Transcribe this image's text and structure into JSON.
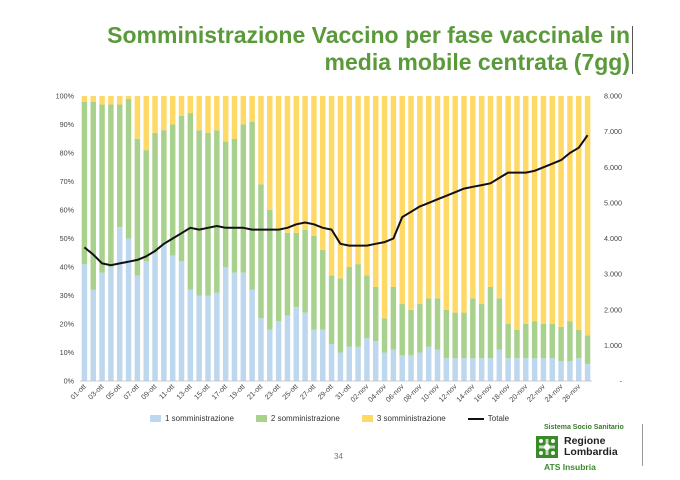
{
  "title": {
    "line1": "Somministrazione Vaccino per fase vaccinale in",
    "line2": "media mobile centrata (7gg)"
  },
  "colors": {
    "title": "#5a9a3a",
    "dose1": "#bdd7ee",
    "dose2": "#a9d18e",
    "dose3": "#ffd966",
    "totale": "#111111"
  },
  "footer": {
    "page_number": "34",
    "logo_system": "Sistema Socio Sanitario",
    "logo_region_1": "Regione",
    "logo_region_2": "Lombardia",
    "logo_ats": "ATS Insubria"
  },
  "chart_data": {
    "type": "bar",
    "stacked": "percent",
    "title": "",
    "xlabel": "",
    "ylabel": "",
    "ylim": [
      0,
      100
    ],
    "y2lim": [
      0,
      8000
    ],
    "y_ticks": [
      "0%",
      "10%",
      "20%",
      "30%",
      "40%",
      "50%",
      "60%",
      "70%",
      "80%",
      "90%",
      "100%"
    ],
    "y2_ticks": [
      "-",
      "1.000",
      "2.000",
      "3.000",
      "4.000",
      "5.000",
      "6.000",
      "7.000",
      "8.000"
    ],
    "grid": false,
    "legend_position": "bottom",
    "x_tick_labels": [
      "01-ott",
      "03-ott",
      "05-ott",
      "07-ott",
      "09-ott",
      "11-ott",
      "13-ott",
      "15-ott",
      "17-ott",
      "19-ott",
      "21-ott",
      "23-ott",
      "25-ott",
      "27-ott",
      "29-ott",
      "31-ott",
      "02-nov",
      "04-nov",
      "06-nov",
      "08-nov",
      "10-nov",
      "12-nov",
      "14-nov",
      "16-nov",
      "18-nov",
      "20-nov",
      "22-nov",
      "24-nov",
      "26-nov"
    ],
    "categories": [
      "01-ott",
      "02-ott",
      "03-ott",
      "04-ott",
      "05-ott",
      "06-ott",
      "07-ott",
      "08-ott",
      "09-ott",
      "10-ott",
      "11-ott",
      "12-ott",
      "13-ott",
      "14-ott",
      "15-ott",
      "16-ott",
      "17-ott",
      "18-ott",
      "19-ott",
      "20-ott",
      "21-ott",
      "22-ott",
      "23-ott",
      "24-ott",
      "25-ott",
      "26-ott",
      "27-ott",
      "28-ott",
      "29-ott",
      "30-ott",
      "31-ott",
      "01-nov",
      "02-nov",
      "03-nov",
      "04-nov",
      "05-nov",
      "06-nov",
      "07-nov",
      "08-nov",
      "09-nov",
      "10-nov",
      "11-nov",
      "12-nov",
      "13-nov",
      "14-nov",
      "15-nov",
      "16-nov",
      "17-nov",
      "18-nov",
      "19-nov",
      "20-nov",
      "21-nov",
      "22-nov",
      "23-nov",
      "24-nov",
      "25-nov",
      "26-nov",
      "27-nov"
    ],
    "series": [
      {
        "name": "1 somministrazione",
        "values": [
          41,
          32,
          38,
          40,
          54,
          50,
          37,
          42,
          45,
          48,
          44,
          42,
          32,
          30,
          30,
          31,
          40,
          38,
          38,
          32,
          22,
          18,
          21,
          23,
          26,
          24,
          18,
          18,
          13,
          10,
          12,
          12,
          15,
          14,
          10,
          11,
          9,
          9,
          10,
          12,
          11,
          8,
          8,
          8,
          8,
          8,
          8,
          11,
          8,
          8,
          8,
          8,
          8,
          8,
          7,
          7,
          8,
          6
        ]
      },
      {
        "name": "2 somministrazione",
        "values": [
          57,
          66,
          59,
          57,
          43,
          49,
          48,
          39,
          42,
          40,
          46,
          51,
          62,
          58,
          57,
          57,
          44,
          47,
          52,
          59,
          47,
          42,
          32,
          29,
          26,
          29,
          33,
          28,
          24,
          26,
          28,
          29,
          22,
          19,
          12,
          22,
          18,
          16,
          17,
          17,
          18,
          17,
          16,
          16,
          21,
          19,
          25,
          18,
          12,
          10,
          12,
          13,
          12,
          12,
          12,
          14,
          10,
          10
        ]
      },
      {
        "name": "3 somministrazione",
        "values": [
          2,
          2,
          3,
          3,
          3,
          1,
          15,
          19,
          13,
          12,
          10,
          7,
          6,
          12,
          13,
          12,
          16,
          15,
          10,
          9,
          31,
          40,
          47,
          48,
          48,
          47,
          49,
          54,
          63,
          64,
          60,
          59,
          63,
          67,
          78,
          67,
          73,
          75,
          73,
          71,
          71,
          75,
          76,
          76,
          71,
          73,
          67,
          71,
          80,
          82,
          80,
          79,
          80,
          80,
          81,
          79,
          82,
          84
        ]
      },
      {
        "name": "Totale",
        "axis": "right",
        "values": [
          3750,
          3550,
          3300,
          3250,
          3300,
          3350,
          3400,
          3500,
          3650,
          3850,
          4000,
          4150,
          4300,
          4250,
          4300,
          4350,
          4300,
          4300,
          4300,
          4250,
          4250,
          4250,
          4250,
          4300,
          4400,
          4450,
          4400,
          4300,
          4250,
          3850,
          3800,
          3800,
          3800,
          3850,
          3900,
          4000,
          4600,
          4750,
          4900,
          5000,
          5100,
          5200,
          5300,
          5400,
          5450,
          5500,
          5550,
          5700,
          5850,
          5850,
          5850,
          5900,
          6000,
          6100,
          6200,
          6400,
          6550,
          6900
        ]
      }
    ]
  }
}
